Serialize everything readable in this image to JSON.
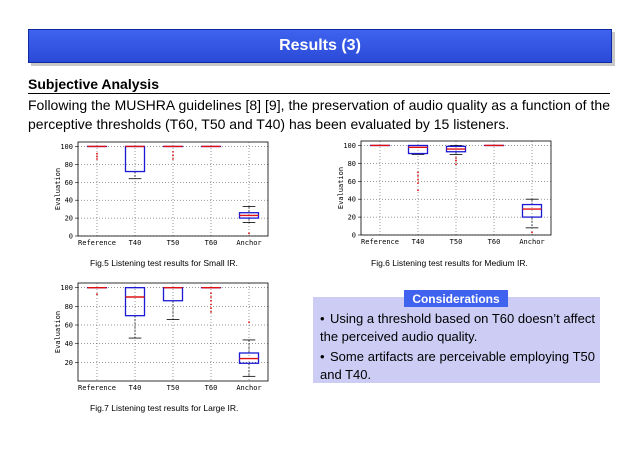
{
  "header": {
    "title": "Results (3)"
  },
  "section": {
    "heading": "Subjective Analysis",
    "paragraph": "Following the MUSHRA guidelines [8] [9], the preservation of audio quality as a function of the perceptive thresholds (T60, T50 and T40) has been evaluated by 15 listeners."
  },
  "captions": {
    "fig5": "Fig.5 Listening test results for Small IR.",
    "fig6": "Fig.6 Listening test results for Medium IR.",
    "fig7": "Fig.7 Listening test results for Large IR."
  },
  "considerations": {
    "title": "Considerations",
    "bullets": [
      "Using a threshold based on T60 doesn’t affect the perceived audio quality.",
      "Some artifacts are perceivable employing T50 and T40."
    ]
  },
  "chart_data": [
    {
      "type": "box",
      "title": "",
      "ylabel": "Evaluation",
      "ylim": [
        0,
        105
      ],
      "yticks": [
        "0",
        "20",
        "40",
        "60",
        "80",
        "100"
      ],
      "categories": [
        "Reference",
        "T40",
        "T50",
        "T60",
        "Anchor"
      ],
      "boxes": [
        {
          "min": 100,
          "q1": 100,
          "median": 100,
          "q3": 100,
          "max": 100,
          "outliers": [
            92,
            89,
            86
          ]
        },
        {
          "min": 64,
          "q1": 72,
          "median": 100,
          "q3": 100,
          "max": 100,
          "outliers": []
        },
        {
          "min": 100,
          "q1": 100,
          "median": 100,
          "q3": 100,
          "max": 100,
          "outliers": [
            94,
            90,
            86
          ]
        },
        {
          "min": 100,
          "q1": 100,
          "median": 100,
          "q3": 100,
          "max": 100,
          "outliers": []
        },
        {
          "min": 15,
          "q1": 20,
          "median": 23,
          "q3": 26,
          "max": 33,
          "outliers": [
            3
          ]
        }
      ]
    },
    {
      "type": "box",
      "title": "",
      "ylabel": "Evaluation",
      "ylim": [
        0,
        105
      ],
      "yticks": [
        "0",
        "20",
        "40",
        "60",
        "80",
        "100"
      ],
      "categories": [
        "Reference",
        "T40",
        "T50",
        "T60",
        "Anchor"
      ],
      "boxes": [
        {
          "min": 100,
          "q1": 100,
          "median": 100,
          "q3": 100,
          "max": 100,
          "outliers": []
        },
        {
          "min": 90,
          "q1": 91,
          "median": 98,
          "q3": 100,
          "max": 100,
          "outliers": [
            70,
            66,
            62,
            58,
            50
          ]
        },
        {
          "min": 90,
          "q1": 93,
          "median": 96,
          "q3": 99,
          "max": 100,
          "outliers": [
            86,
            83,
            79
          ]
        },
        {
          "min": 100,
          "q1": 100,
          "median": 100,
          "q3": 100,
          "max": 100,
          "outliers": []
        },
        {
          "min": 8,
          "q1": 20,
          "median": 29,
          "q3": 34,
          "max": 40,
          "outliers": [
            3
          ]
        }
      ]
    },
    {
      "type": "box",
      "title": "",
      "ylabel": "Evaluation",
      "ylim": [
        0,
        105
      ],
      "yticks": [
        "20",
        "40",
        "60",
        "80",
        "100"
      ],
      "categories": [
        "Reference",
        "T40",
        "T50",
        "T60",
        "Anchor"
      ],
      "boxes": [
        {
          "min": 100,
          "q1": 100,
          "median": 100,
          "q3": 100,
          "max": 100,
          "outliers": [
            93
          ]
        },
        {
          "min": 46,
          "q1": 70,
          "median": 90,
          "q3": 100,
          "max": 100,
          "outliers": []
        },
        {
          "min": 66,
          "q1": 86,
          "median": 100,
          "q3": 100,
          "max": 100,
          "outliers": []
        },
        {
          "min": 100,
          "q1": 100,
          "median": 100,
          "q3": 100,
          "max": 100,
          "outliers": [
            94,
            90,
            86,
            82,
            78,
            74
          ]
        },
        {
          "min": 5,
          "q1": 19,
          "median": 24,
          "q3": 30,
          "max": 44,
          "outliers": [
            63
          ]
        }
      ]
    }
  ]
}
